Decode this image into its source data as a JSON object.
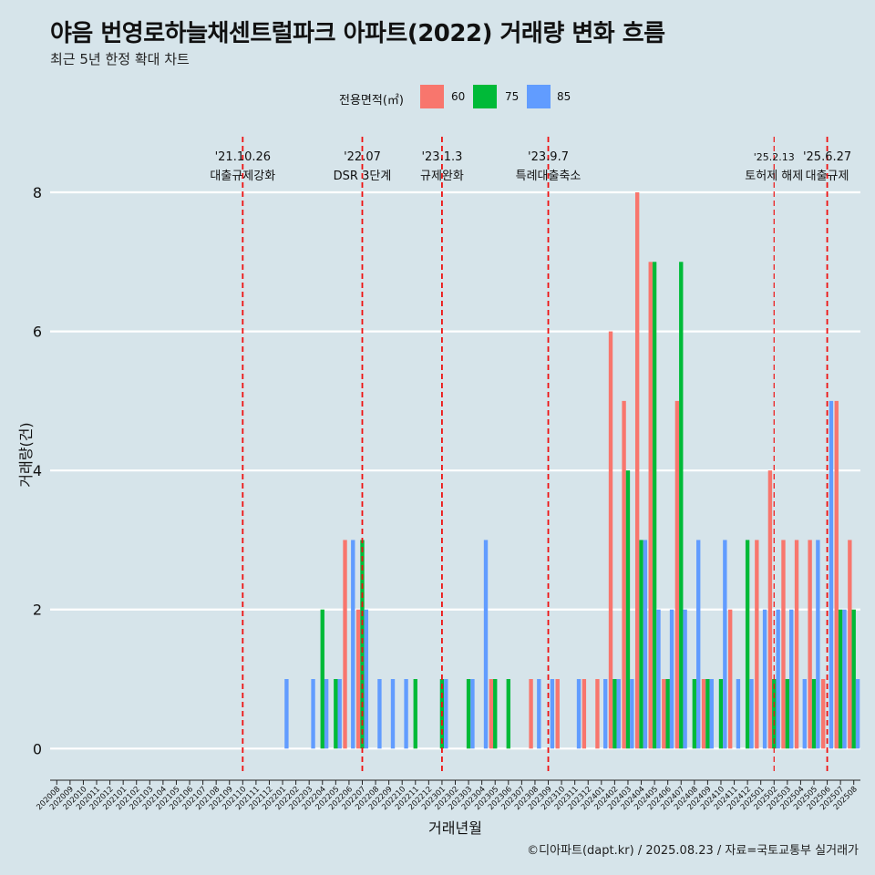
{
  "title": "야음 번영로하늘채센트럴파크 아파트(2022) 거래량 변화 흐름",
  "subtitle": "최근 5년 한정 확대 차트",
  "caption": "©디아파트(dapt.kr) / 2025.08.23 / 자료=국토교통부 실거래가",
  "chart_data": {
    "type": "bar",
    "title": "야음 번영로하늘채센트럴파크 아파트(2022) 거래량 변화 흐름",
    "subtitle": "최근 5년 한정 확대 차트",
    "xlabel": "거래년월",
    "ylabel": "거래량(건)",
    "ylim": [
      -0.35,
      8.8
    ],
    "yticks": [
      0,
      2,
      4,
      6,
      8
    ],
    "grid": true,
    "legend_title": "전용면적(㎡)",
    "legend_position": "top",
    "categories": [
      "202008",
      "202009",
      "202010",
      "202011",
      "202012",
      "202101",
      "202102",
      "202103",
      "202104",
      "202105",
      "202106",
      "202107",
      "202108",
      "202109",
      "202110",
      "202111",
      "202112",
      "202201",
      "202202",
      "202203",
      "202204",
      "202205",
      "202206",
      "202207",
      "202208",
      "202209",
      "202210",
      "202211",
      "202212",
      "202301",
      "202302",
      "202303",
      "202304",
      "202305",
      "202306",
      "202307",
      "202308",
      "202309",
      "202310",
      "202311",
      "202312",
      "202401",
      "202402",
      "202403",
      "202404",
      "202405",
      "202406",
      "202407",
      "202408",
      "202409",
      "202410",
      "202411",
      "202412",
      "202501",
      "202502",
      "202503",
      "202504",
      "202505",
      "202506",
      "202507",
      "202508"
    ],
    "series": [
      {
        "name": "60",
        "color": "#f8766d",
        "values": [
          0,
          0,
          0,
          0,
          0,
          0,
          0,
          0,
          0,
          0,
          0,
          0,
          0,
          0,
          0,
          0,
          0,
          0,
          0,
          0,
          0,
          0,
          3,
          2,
          0,
          0,
          0,
          0,
          0,
          0,
          0,
          0,
          0,
          1,
          0,
          0,
          1,
          0,
          1,
          0,
          1,
          1,
          6,
          5,
          8,
          7,
          1,
          5,
          0,
          1,
          0,
          2,
          0,
          3,
          4,
          3,
          3,
          3,
          1,
          5,
          3
        ]
      },
      {
        "name": "75",
        "color": "#00ba38",
        "values": [
          0,
          0,
          0,
          0,
          0,
          0,
          0,
          0,
          0,
          0,
          0,
          0,
          0,
          0,
          0,
          0,
          0,
          0,
          0,
          0,
          2,
          1,
          0,
          3,
          0,
          0,
          0,
          1,
          0,
          1,
          0,
          1,
          0,
          1,
          1,
          0,
          0,
          0,
          0,
          0,
          0,
          0,
          1,
          4,
          3,
          7,
          1,
          7,
          1,
          1,
          1,
          0,
          3,
          0,
          1,
          1,
          0,
          1,
          0,
          2,
          2
        ]
      },
      {
        "name": "85",
        "color": "#619cff",
        "values": [
          0,
          0,
          0,
          0,
          0,
          0,
          0,
          0,
          0,
          0,
          0,
          0,
          0,
          0,
          0,
          0,
          0,
          1,
          0,
          1,
          1,
          1,
          3,
          2,
          1,
          1,
          1,
          0,
          0,
          1,
          0,
          1,
          3,
          0,
          0,
          0,
          1,
          1,
          0,
          1,
          0,
          1,
          1,
          1,
          3,
          2,
          2,
          2,
          3,
          1,
          3,
          1,
          1,
          2,
          2,
          2,
          1,
          3,
          5,
          2,
          1
        ]
      }
    ],
    "annotations": [
      {
        "x": "202110",
        "date": "'21.10.26",
        "label": "대출규제강화"
      },
      {
        "x": "202207",
        "date": "'22.07",
        "label": "DSR 3단계"
      },
      {
        "x": "202301",
        "date": "'23.1.3",
        "label": "규제완화"
      },
      {
        "x": "202309",
        "date": "'23.9.7",
        "label": "특례대출축소"
      },
      {
        "x": "202502",
        "date": "'25.2.13",
        "label": "토허제 해제"
      },
      {
        "x": "202506",
        "date": "'25.6.27",
        "label": "대출규제"
      }
    ]
  }
}
